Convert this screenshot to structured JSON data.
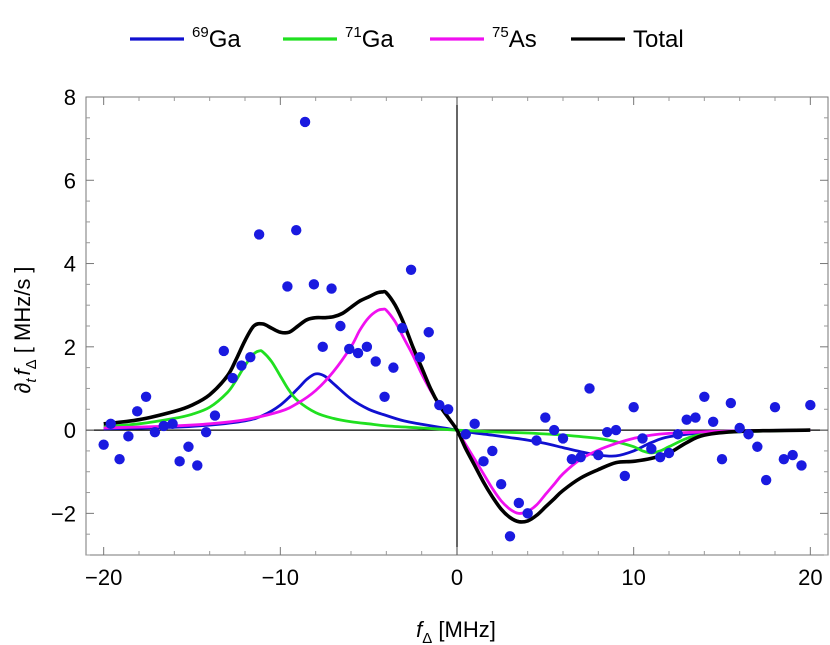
{
  "chart_data": {
    "type": "scatter",
    "xlabel": {
      "main": "f",
      "sub": "Δ",
      "unit": " [MHz]"
    },
    "ylabel": {
      "prefix": "∂",
      "sub1": "t",
      "main": "f",
      "sub2": "Δ",
      "unit": "  [ MHz/s ]"
    },
    "xlim": [
      -21,
      21
    ],
    "ylim": [
      -3,
      8
    ],
    "x_ticks": [
      -20,
      -10,
      0,
      10,
      20
    ],
    "x_tick_labels": [
      "−20",
      "−10",
      "0",
      "10",
      "20"
    ],
    "y_ticks": [
      -2,
      0,
      2,
      4,
      6,
      8
    ],
    "y_tick_labels": [
      "−2",
      "0",
      "2",
      "4",
      "6",
      "8"
    ],
    "grid": false,
    "zero_lines": true,
    "legend": {
      "position": "top",
      "entries": [
        {
          "sup": "69",
          "label": "Ga",
          "color": "#1010d0"
        },
        {
          "sup": "71",
          "label": "Ga",
          "color": "#20e020"
        },
        {
          "sup": "75",
          "label": "As",
          "color": "#f010f0"
        },
        {
          "sup": "",
          "label": "Total",
          "color": "#000000"
        }
      ]
    },
    "scatter": {
      "color": "#1a1ae0",
      "points": [
        [
          -20.0,
          -0.35
        ],
        [
          -19.6,
          0.15
        ],
        [
          -19.1,
          -0.7
        ],
        [
          -18.6,
          -0.15
        ],
        [
          -18.1,
          0.45
        ],
        [
          -17.6,
          0.8
        ],
        [
          -17.1,
          -0.05
        ],
        [
          -16.6,
          0.1
        ],
        [
          -16.1,
          0.15
        ],
        [
          -15.7,
          -0.75
        ],
        [
          -15.2,
          -0.4
        ],
        [
          -14.7,
          -0.85
        ],
        [
          -14.2,
          -0.05
        ],
        [
          -13.7,
          0.35
        ],
        [
          -13.2,
          1.9
        ],
        [
          -12.7,
          1.25
        ],
        [
          -12.2,
          1.55
        ],
        [
          -11.7,
          1.75
        ],
        [
          -11.2,
          4.7
        ],
        [
          -9.6,
          3.45
        ],
        [
          -9.1,
          4.8
        ],
        [
          -8.6,
          7.4
        ],
        [
          -8.1,
          3.5
        ],
        [
          -7.6,
          2.0
        ],
        [
          -7.1,
          3.4
        ],
        [
          -6.6,
          2.5
        ],
        [
          -6.1,
          1.95
        ],
        [
          -5.6,
          1.85
        ],
        [
          -5.1,
          2.0
        ],
        [
          -4.6,
          1.65
        ],
        [
          -4.1,
          0.8
        ],
        [
          -3.6,
          1.5
        ],
        [
          -3.1,
          2.45
        ],
        [
          -2.6,
          3.85
        ],
        [
          -2.1,
          1.75
        ],
        [
          -1.6,
          2.35
        ],
        [
          -1.0,
          0.6
        ],
        [
          -0.5,
          0.5
        ],
        [
          0.5,
          -0.1
        ],
        [
          1.0,
          0.15
        ],
        [
          1.5,
          -0.75
        ],
        [
          2.0,
          -0.5
        ],
        [
          2.5,
          -1.3
        ],
        [
          3.0,
          -2.55
        ],
        [
          3.5,
          -1.75
        ],
        [
          4.0,
          -2.0
        ],
        [
          4.5,
          -0.25
        ],
        [
          5.0,
          0.3
        ],
        [
          5.5,
          0.0
        ],
        [
          6.0,
          -0.2
        ],
        [
          6.5,
          -0.7
        ],
        [
          7.0,
          -0.65
        ],
        [
          7.5,
          1.0
        ],
        [
          8.0,
          -0.6
        ],
        [
          8.5,
          -0.05
        ],
        [
          9.0,
          0.0
        ],
        [
          9.5,
          -1.1
        ],
        [
          10.0,
          0.55
        ],
        [
          10.5,
          -0.2
        ],
        [
          11.0,
          -0.45
        ],
        [
          11.5,
          -0.65
        ],
        [
          12.0,
          -0.55
        ],
        [
          12.5,
          -0.1
        ],
        [
          13.0,
          0.25
        ],
        [
          13.5,
          0.3
        ],
        [
          14.0,
          0.8
        ],
        [
          14.5,
          0.2
        ],
        [
          15.0,
          -0.7
        ],
        [
          15.5,
          0.65
        ],
        [
          16.0,
          0.05
        ],
        [
          16.5,
          -0.1
        ],
        [
          17.0,
          -0.4
        ],
        [
          17.5,
          -1.2
        ],
        [
          18.0,
          0.55
        ],
        [
          18.5,
          -0.7
        ],
        [
          19.0,
          -0.6
        ],
        [
          19.5,
          -0.85
        ],
        [
          20.0,
          0.6
        ]
      ]
    },
    "series": [
      {
        "name": "69Ga",
        "color": "#1010d0",
        "x": [
          -20,
          -16,
          -14,
          -12,
          -11,
          -10,
          -9,
          -8.5,
          -8,
          -7.5,
          -7,
          -6,
          -5,
          -4,
          -3,
          -2,
          -1,
          0,
          1,
          2,
          3,
          4,
          5,
          6,
          7,
          8,
          9,
          10,
          11,
          12,
          14,
          16,
          20
        ],
        "y": [
          0.03,
          0.07,
          0.12,
          0.22,
          0.35,
          0.6,
          1.0,
          1.22,
          1.35,
          1.3,
          1.12,
          0.75,
          0.5,
          0.35,
          0.22,
          0.14,
          0.07,
          0,
          -0.07,
          -0.12,
          -0.18,
          -0.24,
          -0.32,
          -0.42,
          -0.52,
          -0.6,
          -0.62,
          -0.5,
          -0.3,
          -0.16,
          -0.06,
          -0.02,
          0
        ]
      },
      {
        "name": "71Ga",
        "color": "#20e020",
        "x": [
          -20,
          -18,
          -16,
          -15,
          -14,
          -13,
          -12.5,
          -12,
          -11.5,
          -11.2,
          -11,
          -10.5,
          -10,
          -9.5,
          -9,
          -8,
          -7,
          -6,
          -5,
          -4,
          -2,
          0,
          2,
          4,
          6,
          8,
          9,
          10,
          10.5,
          11,
          11.5,
          12,
          13,
          14,
          16,
          20
        ],
        "y": [
          0.08,
          0.15,
          0.28,
          0.38,
          0.55,
          0.9,
          1.2,
          1.55,
          1.83,
          1.9,
          1.88,
          1.65,
          1.3,
          0.95,
          0.7,
          0.42,
          0.28,
          0.2,
          0.15,
          0.1,
          0.05,
          0,
          -0.04,
          -0.07,
          -0.12,
          -0.2,
          -0.28,
          -0.4,
          -0.5,
          -0.55,
          -0.5,
          -0.4,
          -0.2,
          -0.1,
          -0.04,
          0
        ]
      },
      {
        "name": "75As",
        "color": "#f010f0",
        "x": [
          -20,
          -16,
          -14,
          -12,
          -10,
          -9,
          -8,
          -7,
          -6,
          -5.5,
          -5,
          -4.5,
          -4.2,
          -4,
          -3.5,
          -3,
          -2.5,
          -2,
          -1.5,
          -1,
          -0.5,
          0,
          0.5,
          1,
          1.5,
          2,
          2.5,
          3,
          3.5,
          4,
          4.5,
          5,
          5.5,
          6,
          7,
          8,
          9,
          10,
          11,
          12,
          14,
          16,
          20
        ],
        "y": [
          0.05,
          0.1,
          0.15,
          0.25,
          0.45,
          0.65,
          0.95,
          1.4,
          2.0,
          2.4,
          2.7,
          2.87,
          2.9,
          2.88,
          2.6,
          2.2,
          1.8,
          1.35,
          0.95,
          0.6,
          0.3,
          0,
          -0.35,
          -0.7,
          -1.05,
          -1.4,
          -1.7,
          -1.9,
          -2.0,
          -1.95,
          -1.8,
          -1.55,
          -1.3,
          -1.05,
          -0.7,
          -0.48,
          -0.32,
          -0.2,
          -0.12,
          -0.08,
          -0.04,
          -0.02,
          0
        ]
      },
      {
        "name": "Total",
        "color": "#000000",
        "x": [
          -20,
          -18,
          -16,
          -15,
          -14,
          -13,
          -12.5,
          -12,
          -11.5,
          -11,
          -10.5,
          -10,
          -9.5,
          -9,
          -8.5,
          -8,
          -7.5,
          -7,
          -6.5,
          -6,
          -5.5,
          -5,
          -4.5,
          -4.2,
          -4,
          -3.5,
          -3,
          -2.5,
          -2,
          -1.5,
          -1,
          -0.5,
          0,
          0.5,
          1,
          1.5,
          2,
          2.5,
          3,
          3.5,
          4,
          4.5,
          5,
          5.5,
          6,
          7,
          8,
          9,
          10,
          11,
          12,
          13,
          14,
          16,
          20
        ],
        "y": [
          0.15,
          0.25,
          0.45,
          0.6,
          0.85,
          1.3,
          1.7,
          2.15,
          2.5,
          2.55,
          2.45,
          2.35,
          2.35,
          2.5,
          2.65,
          2.7,
          2.7,
          2.72,
          2.8,
          2.95,
          3.1,
          3.2,
          3.3,
          3.32,
          3.3,
          3.0,
          2.55,
          2.0,
          1.5,
          1.0,
          0.6,
          0.3,
          0,
          -0.45,
          -0.85,
          -1.25,
          -1.6,
          -1.9,
          -2.1,
          -2.2,
          -2.18,
          -2.05,
          -1.85,
          -1.65,
          -1.45,
          -1.15,
          -0.95,
          -0.78,
          -0.75,
          -0.68,
          -0.55,
          -0.3,
          -0.12,
          -0.03,
          0
        ]
      }
    ]
  }
}
